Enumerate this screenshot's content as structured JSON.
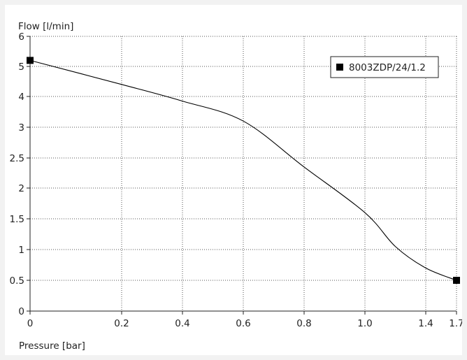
{
  "chart_data": {
    "type": "line",
    "ylabel": "Flow [l/min]",
    "xlabel": "Pressure [bar]",
    "x_ticks": [
      "0",
      "0.2",
      "0.4",
      "0.6",
      "0.8",
      "1.0",
      "1.4",
      "1.7"
    ],
    "y_ticks": [
      "0",
      "0.5",
      "1",
      "1.5",
      "2",
      "2.5",
      "3",
      "4",
      "5",
      "6"
    ],
    "grid": true,
    "grid_style": "dotted",
    "legend_position": "top-right",
    "series": [
      {
        "name": "8003ZDP/24/1.2",
        "color": "#000000",
        "marker": "square",
        "markers_at": [
          0,
          8
        ],
        "x": [
          "0",
          "0.2",
          "0.4",
          "0.6",
          "0.8",
          "1.0",
          "1.2",
          "1.4",
          "1.7"
        ],
        "y": [
          "5.2",
          "4.4",
          "3.85",
          "3.2",
          "2.35",
          "1.6",
          "1.05",
          "0.7",
          "0.5"
        ]
      }
    ]
  }
}
